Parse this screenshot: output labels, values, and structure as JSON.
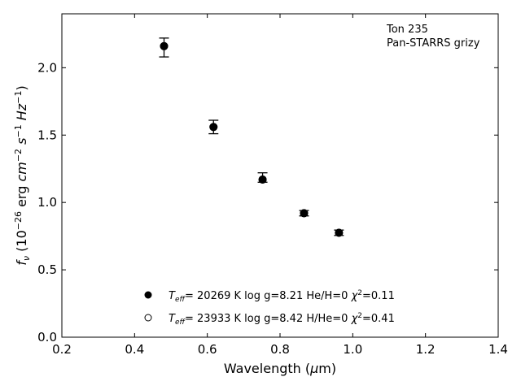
{
  "chart_data": {
    "type": "scatter",
    "title": "",
    "xlabel": "Wavelength (μm)",
    "ylabel": "f_ν (10^-26 erg cm^-2 s^-1 Hz^-1)",
    "xlim": [
      0.2,
      1.4
    ],
    "ylim": [
      0.0,
      2.4
    ],
    "xticks": [
      "0.2",
      "0.4",
      "0.6",
      "0.8",
      "1.0",
      "1.2",
      "1.4"
    ],
    "yticks": [
      "0.0",
      "0.5",
      "1.0",
      "1.5",
      "2.0"
    ],
    "annotations": [
      "Ton 235",
      "Pan-STARRS grizy"
    ],
    "legend_position": "lower-left",
    "observed": {
      "x": [
        0.481,
        0.617,
        0.752,
        0.866,
        0.962
      ],
      "y": [
        2.15,
        1.56,
        1.17,
        0.92,
        0.775
      ],
      "err_up": [
        0.07,
        0.05,
        0.05,
        0.02,
        0.02
      ],
      "err_down": [
        0.07,
        0.05,
        0.02,
        0.02,
        0.02
      ]
    },
    "series": [
      {
        "name": "T_eff= 20269 K  log g=8.21  He/H=0  χ²=0.11",
        "marker": "filled-circle",
        "x": [
          0.481,
          0.617,
          0.752,
          0.866,
          0.962
        ],
        "y": [
          2.16,
          1.56,
          1.17,
          0.92,
          0.775
        ]
      },
      {
        "name": "T_eff= 23933 K  log g=8.42  H/He=0  χ²=0.41",
        "marker": "open-circle",
        "x": [
          0.481,
          0.617,
          0.752,
          0.866,
          0.962
        ],
        "y": [
          2.16,
          1.56,
          1.17,
          0.92,
          0.775
        ]
      }
    ]
  }
}
